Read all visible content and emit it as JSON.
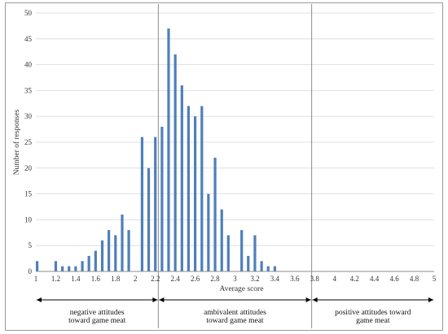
{
  "chart_data": {
    "type": "bar",
    "xlabel": "Average score",
    "ylabel": "Number of responses",
    "ylim": [
      0,
      50
    ],
    "xlim": [
      1,
      5
    ],
    "yticks": [
      "0",
      "5",
      "10",
      "15",
      "20",
      "25",
      "30",
      "35",
      "40",
      "45",
      "50"
    ],
    "xticks": [
      "1",
      "1.2",
      "1.4",
      "1.6",
      "1.8",
      "2",
      "2.2",
      "2.4",
      "2.6",
      "2.8",
      "3",
      "3.2",
      "3.4",
      "3.6",
      "3.8",
      "4",
      "4.2",
      "4.4",
      "4.6",
      "4.8",
      "5"
    ],
    "grid": "horizontal",
    "bar_color": "#4f7fbb",
    "x": [
      1.0,
      1.067,
      1.133,
      1.2,
      1.267,
      1.333,
      1.4,
      1.467,
      1.533,
      1.6,
      1.667,
      1.733,
      1.8,
      1.867,
      1.933,
      2.0,
      2.067,
      2.133,
      2.2,
      2.267,
      2.333,
      2.4,
      2.467,
      2.533,
      2.6,
      2.667,
      2.733,
      2.8,
      2.867,
      2.933,
      3.0,
      3.067,
      3.133,
      3.2,
      3.267,
      3.333,
      3.4,
      3.467,
      3.533,
      3.6,
      3.667,
      3.733,
      3.8,
      3.867,
      3.933,
      4.0,
      4.067,
      4.133,
      4.2,
      4.267,
      4.333,
      4.4,
      4.467,
      4.533,
      4.6,
      4.667,
      4.733,
      4.8,
      4.867,
      4.933,
      5.0
    ],
    "values": [
      2,
      0,
      0,
      2,
      1,
      1,
      1,
      2,
      3,
      4,
      6,
      8,
      7,
      11,
      8,
      0,
      26,
      20,
      26,
      28,
      47,
      42,
      36,
      32,
      30,
      32,
      15,
      22,
      12,
      7,
      0,
      8,
      3,
      7,
      2,
      1,
      1,
      0,
      0,
      0,
      0,
      0,
      0,
      0,
      0,
      0,
      0,
      0,
      0,
      0,
      0,
      0,
      0,
      0,
      0,
      0,
      0,
      0,
      0,
      0,
      0
    ],
    "regions": [
      {
        "from": 1.0,
        "to": 2.23,
        "line1": "negative attitudes",
        "line2": "toward game meat"
      },
      {
        "from": 2.23,
        "to": 3.77,
        "line1": "ambivalent attitudes",
        "line2": "toward game meat"
      },
      {
        "from": 3.77,
        "to": 5.0,
        "line1": "positive attitudes toward",
        "line2": "game meat"
      }
    ],
    "dividers": [
      2.23,
      3.77
    ]
  }
}
